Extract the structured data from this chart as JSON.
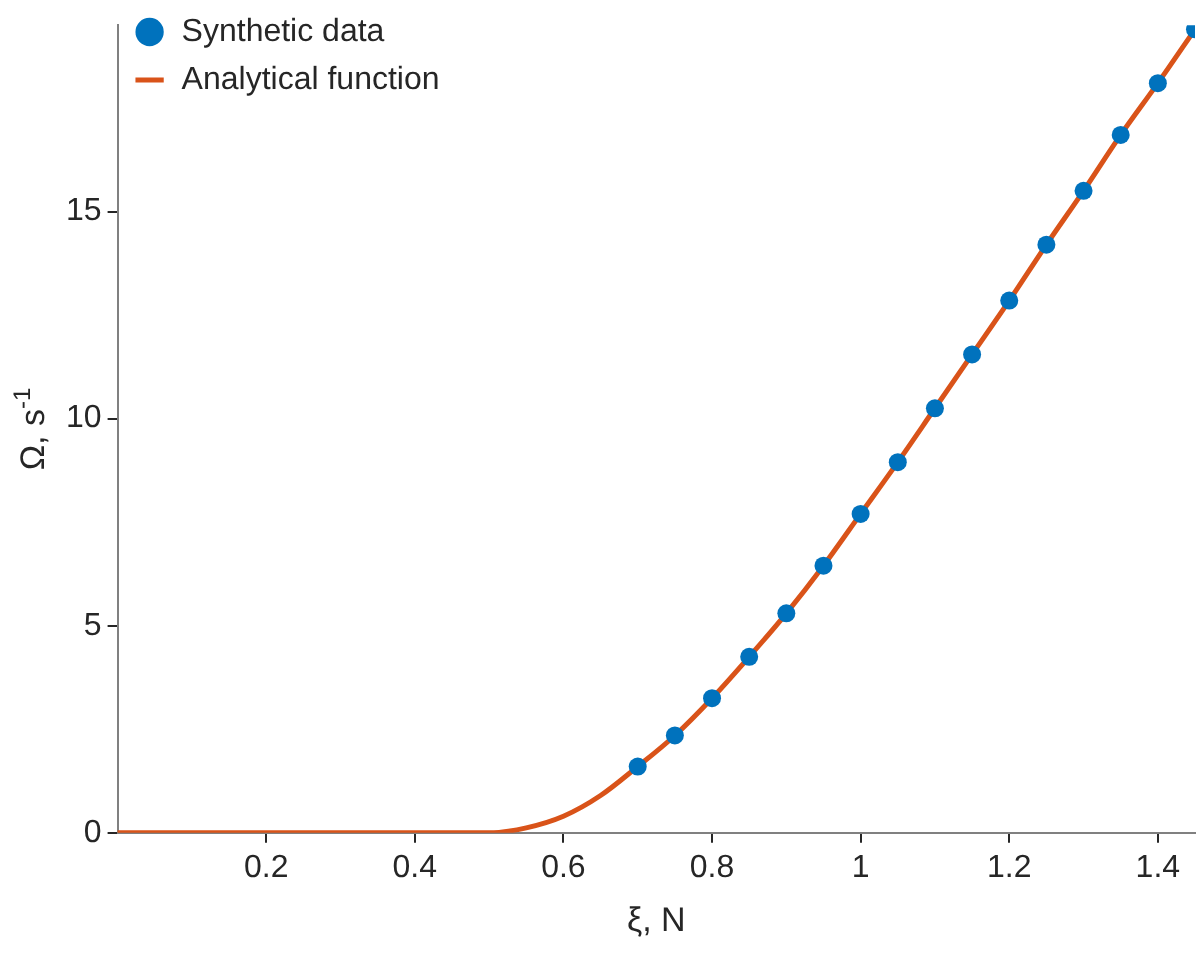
{
  "chart_data": {
    "type": "scatter",
    "xlabel": "ξ, N",
    "ylabel": "Ω, s$^{-1}$",
    "xlim": [
      0,
      1.45
    ],
    "ylim": [
      0,
      19.5
    ],
    "xticks": [
      0.2,
      0.4,
      0.6,
      0.8,
      1,
      1.2,
      1.4
    ],
    "yticks": [
      0,
      5,
      10,
      15
    ],
    "grid": false,
    "legend": "top left",
    "series": [
      {
        "name": "Synthetic data",
        "marker": "circle",
        "color": "#0072bd",
        "x": [
          0.7,
          0.75,
          0.8,
          0.85,
          0.9,
          0.95,
          1.0,
          1.05,
          1.1,
          1.15,
          1.2,
          1.25,
          1.3,
          1.35,
          1.4,
          1.45
        ],
        "values": [
          1.6,
          2.35,
          3.25,
          4.25,
          5.3,
          6.45,
          7.7,
          8.95,
          10.25,
          11.55,
          12.85,
          14.2,
          15.5,
          16.85,
          18.1,
          19.4
        ]
      },
      {
        "name": "Analytical function",
        "type": "line",
        "marker": "none",
        "line_style": "solid",
        "color": "#d95319",
        "x": [
          0,
          0.25,
          0.5,
          0.55,
          0.6,
          0.65,
          0.7,
          0.75,
          0.8,
          0.85,
          0.9,
          0.95,
          1.0,
          1.05,
          1.1,
          1.15,
          1.2,
          1.25,
          1.3,
          1.35,
          1.4,
          1.45
        ],
        "values": [
          0,
          0,
          0,
          0.12,
          0.4,
          0.9,
          1.6,
          2.35,
          3.25,
          4.25,
          5.3,
          6.45,
          7.7,
          8.95,
          10.25,
          11.55,
          12.85,
          14.2,
          15.5,
          16.85,
          18.1,
          19.4
        ]
      }
    ]
  }
}
